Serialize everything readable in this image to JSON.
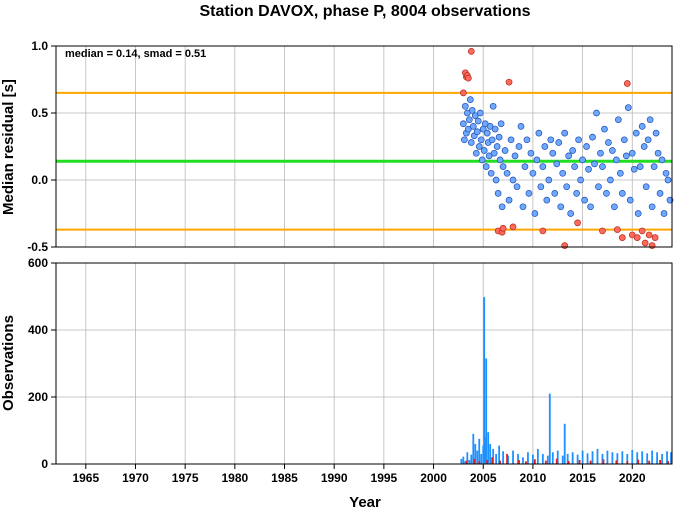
{
  "chart_data": [
    {
      "type": "scatter",
      "title": "Station DAVOX, phase P, 8004 observations",
      "xlabel": "",
      "ylabel": "Median residual [s]",
      "xlim": [
        1962,
        2024
      ],
      "ylim": [
        -0.5,
        1.0
      ],
      "y_ticks": [
        "1.0",
        "0.5",
        "0.0",
        "-0.5"
      ],
      "grid": true,
      "annotation": "median = 0.14, smad = 0.51",
      "reference_lines": [
        {
          "value": 0.14,
          "color": "#22dd22"
        },
        {
          "value": 0.65,
          "color": "#ffa500"
        },
        {
          "value": -0.37,
          "color": "#ffa500"
        }
      ],
      "series": [
        {
          "color": "#6fa8ff",
          "x": [
            2003.0,
            2003.1,
            2003.2,
            2003.3,
            2003.4,
            2003.5,
            2003.6,
            2003.7,
            2003.8,
            2003.9,
            2004.0,
            2004.1,
            2004.2,
            2004.3,
            2004.4,
            2004.5,
            2004.6,
            2004.7,
            2004.8,
            2004.9,
            2005.0,
            2005.1,
            2005.2,
            2005.3,
            2005.4,
            2005.5,
            2005.6,
            2005.7,
            2005.8,
            2005.9,
            2006.0,
            2006.1,
            2006.2,
            2006.3,
            2006.4,
            2006.5,
            2006.6,
            2006.7,
            2006.8,
            2006.9,
            2007.0,
            2007.2,
            2007.4,
            2007.6,
            2007.8,
            2008.0,
            2008.2,
            2008.4,
            2008.6,
            2008.8,
            2009.0,
            2009.2,
            2009.4,
            2009.6,
            2009.8,
            2010.0,
            2010.2,
            2010.4,
            2010.6,
            2010.8,
            2011.0,
            2011.2,
            2011.4,
            2011.6,
            2011.8,
            2012.0,
            2012.2,
            2012.4,
            2012.6,
            2012.8,
            2013.0,
            2013.2,
            2013.4,
            2013.6,
            2013.8,
            2014.0,
            2014.2,
            2014.4,
            2014.6,
            2014.8,
            2015.0,
            2015.2,
            2015.4,
            2015.6,
            2015.8,
            2016.0,
            2016.2,
            2016.4,
            2016.6,
            2016.8,
            2017.0,
            2017.2,
            2017.4,
            2017.6,
            2017.8,
            2018.0,
            2018.2,
            2018.4,
            2018.6,
            2018.8,
            2019.0,
            2019.2,
            2019.4,
            2019.6,
            2019.8,
            2020.0,
            2020.2,
            2020.4,
            2020.6,
            2020.8,
            2021.0,
            2021.2,
            2021.4,
            2021.6,
            2021.8,
            2022.0,
            2022.2,
            2022.4,
            2022.6,
            2022.8,
            2023.0,
            2023.2,
            2023.4,
            2023.6,
            2023.8
          ],
          "y": [
            0.42,
            0.3,
            0.55,
            0.35,
            0.5,
            0.38,
            0.45,
            0.6,
            0.28,
            0.52,
            0.4,
            0.33,
            0.48,
            0.2,
            0.36,
            0.44,
            0.25,
            0.5,
            0.3,
            0.15,
            0.38,
            0.22,
            0.42,
            0.1,
            0.35,
            0.28,
            0.18,
            0.4,
            0.05,
            0.3,
            0.55,
            0.2,
            0.38,
            0.0,
            0.25,
            -0.1,
            0.32,
            0.15,
            0.42,
            -0.2,
            0.1,
            0.22,
            0.05,
            -0.15,
            0.3,
            0.0,
            0.18,
            -0.05,
            0.25,
            0.4,
            -0.2,
            0.1,
            0.3,
            -0.1,
            0.2,
            0.05,
            -0.25,
            0.15,
            0.35,
            -0.05,
            0.1,
            0.25,
            -0.15,
            0.0,
            0.3,
            0.2,
            -0.1,
            0.12,
            0.28,
            -0.2,
            0.05,
            0.35,
            -0.05,
            0.18,
            -0.25,
            0.22,
            0.1,
            -0.1,
            0.3,
            0.0,
            0.15,
            -0.15,
            0.25,
            0.08,
            -0.2,
            0.32,
            0.12,
            0.5,
            -0.05,
            0.2,
            0.1,
            0.38,
            -0.1,
            0.28,
            0.0,
            0.22,
            -0.2,
            0.15,
            0.45,
            0.05,
            -0.1,
            0.3,
            0.18,
            0.54,
            -0.15,
            0.2,
            0.08,
            0.35,
            -0.25,
            0.1,
            0.4,
            0.25,
            -0.05,
            0.3,
            0.45,
            -0.2,
            0.1,
            0.35,
            0.2,
            -0.1,
            0.15,
            -0.25,
            0.05,
            0.0,
            -0.15
          ]
        },
        {
          "color": "#ff6a5a",
          "x": [
            2003.0,
            2003.2,
            2003.3,
            2003.4,
            2003.5,
            2003.8,
            2006.5,
            2006.9,
            2007.0,
            2007.6,
            2008.0,
            2011.0,
            2013.2,
            2014.5,
            2017.0,
            2018.5,
            2019.0,
            2019.5,
            2020.0,
            2020.5,
            2021.0,
            2021.3,
            2021.7,
            2022.0,
            2022.3
          ],
          "y": [
            0.65,
            0.8,
            0.77,
            0.78,
            0.76,
            0.96,
            -0.38,
            -0.39,
            -0.36,
            0.73,
            -0.35,
            -0.38,
            -0.49,
            -0.32,
            -0.38,
            -0.37,
            -0.43,
            0.72,
            -0.41,
            -0.43,
            -0.38,
            -0.47,
            -0.41,
            -0.49,
            -0.43
          ]
        }
      ]
    },
    {
      "type": "bar",
      "title": "",
      "xlabel": "Year",
      "ylabel": "Observations",
      "xlim": [
        1962,
        2024
      ],
      "ylim": [
        0,
        600
      ],
      "y_ticks": [
        "600",
        "400",
        "200",
        "0"
      ],
      "x_ticks": [
        "1965",
        "1970",
        "1975",
        "1980",
        "1985",
        "1990",
        "1995",
        "2000",
        "2005",
        "2010",
        "2015",
        "2020"
      ],
      "grid": true,
      "series": [
        {
          "color": "#1e90ff",
          "x": [
            2002.8,
            2003.0,
            2003.2,
            2003.4,
            2003.6,
            2003.8,
            2004.0,
            2004.2,
            2004.4,
            2004.6,
            2004.8,
            2005.0,
            2005.1,
            2005.2,
            2005.3,
            2005.5,
            2005.7,
            2006.0,
            2006.3,
            2006.6,
            2007.0,
            2007.5,
            2008.0,
            2008.5,
            2009.0,
            2009.5,
            2010.0,
            2010.5,
            2011.0,
            2011.5,
            2011.7,
            2012.0,
            2012.5,
            2013.0,
            2013.2,
            2013.5,
            2014.0,
            2014.5,
            2015.0,
            2015.5,
            2016.0,
            2016.5,
            2017.0,
            2017.5,
            2018.0,
            2018.5,
            2019.0,
            2019.5,
            2020.0,
            2020.5,
            2021.0,
            2021.5,
            2022.0,
            2022.5,
            2023.0,
            2023.5,
            2023.9
          ],
          "values": [
            15,
            22,
            8,
            35,
            12,
            28,
            90,
            60,
            40,
            75,
            30,
            55,
            498,
            80,
            315,
            95,
            60,
            45,
            30,
            55,
            38,
            25,
            40,
            30,
            20,
            35,
            28,
            45,
            30,
            25,
            210,
            35,
            40,
            25,
            120,
            30,
            35,
            28,
            40,
            32,
            38,
            45,
            30,
            40,
            35,
            32,
            38,
            30,
            42,
            35,
            38,
            32,
            40,
            35,
            30,
            38,
            35
          ]
        },
        {
          "color": "#e02020",
          "x": [
            2003.3,
            2004.1,
            2004.6,
            2005.4,
            2005.9,
            2006.7,
            2007.4,
            2008.6,
            2009.3,
            2010.2,
            2011.3,
            2012.4,
            2013.6,
            2014.7,
            2015.8,
            2017.1,
            2018.4,
            2019.5,
            2020.6,
            2021.7,
            2022.8,
            2023.6
          ],
          "values": [
            10,
            15,
            8,
            12,
            20,
            10,
            30,
            12,
            8,
            14,
            10,
            16,
            9,
            12,
            10,
            14,
            11,
            9,
            13,
            10,
            12,
            9
          ]
        }
      ]
    }
  ]
}
